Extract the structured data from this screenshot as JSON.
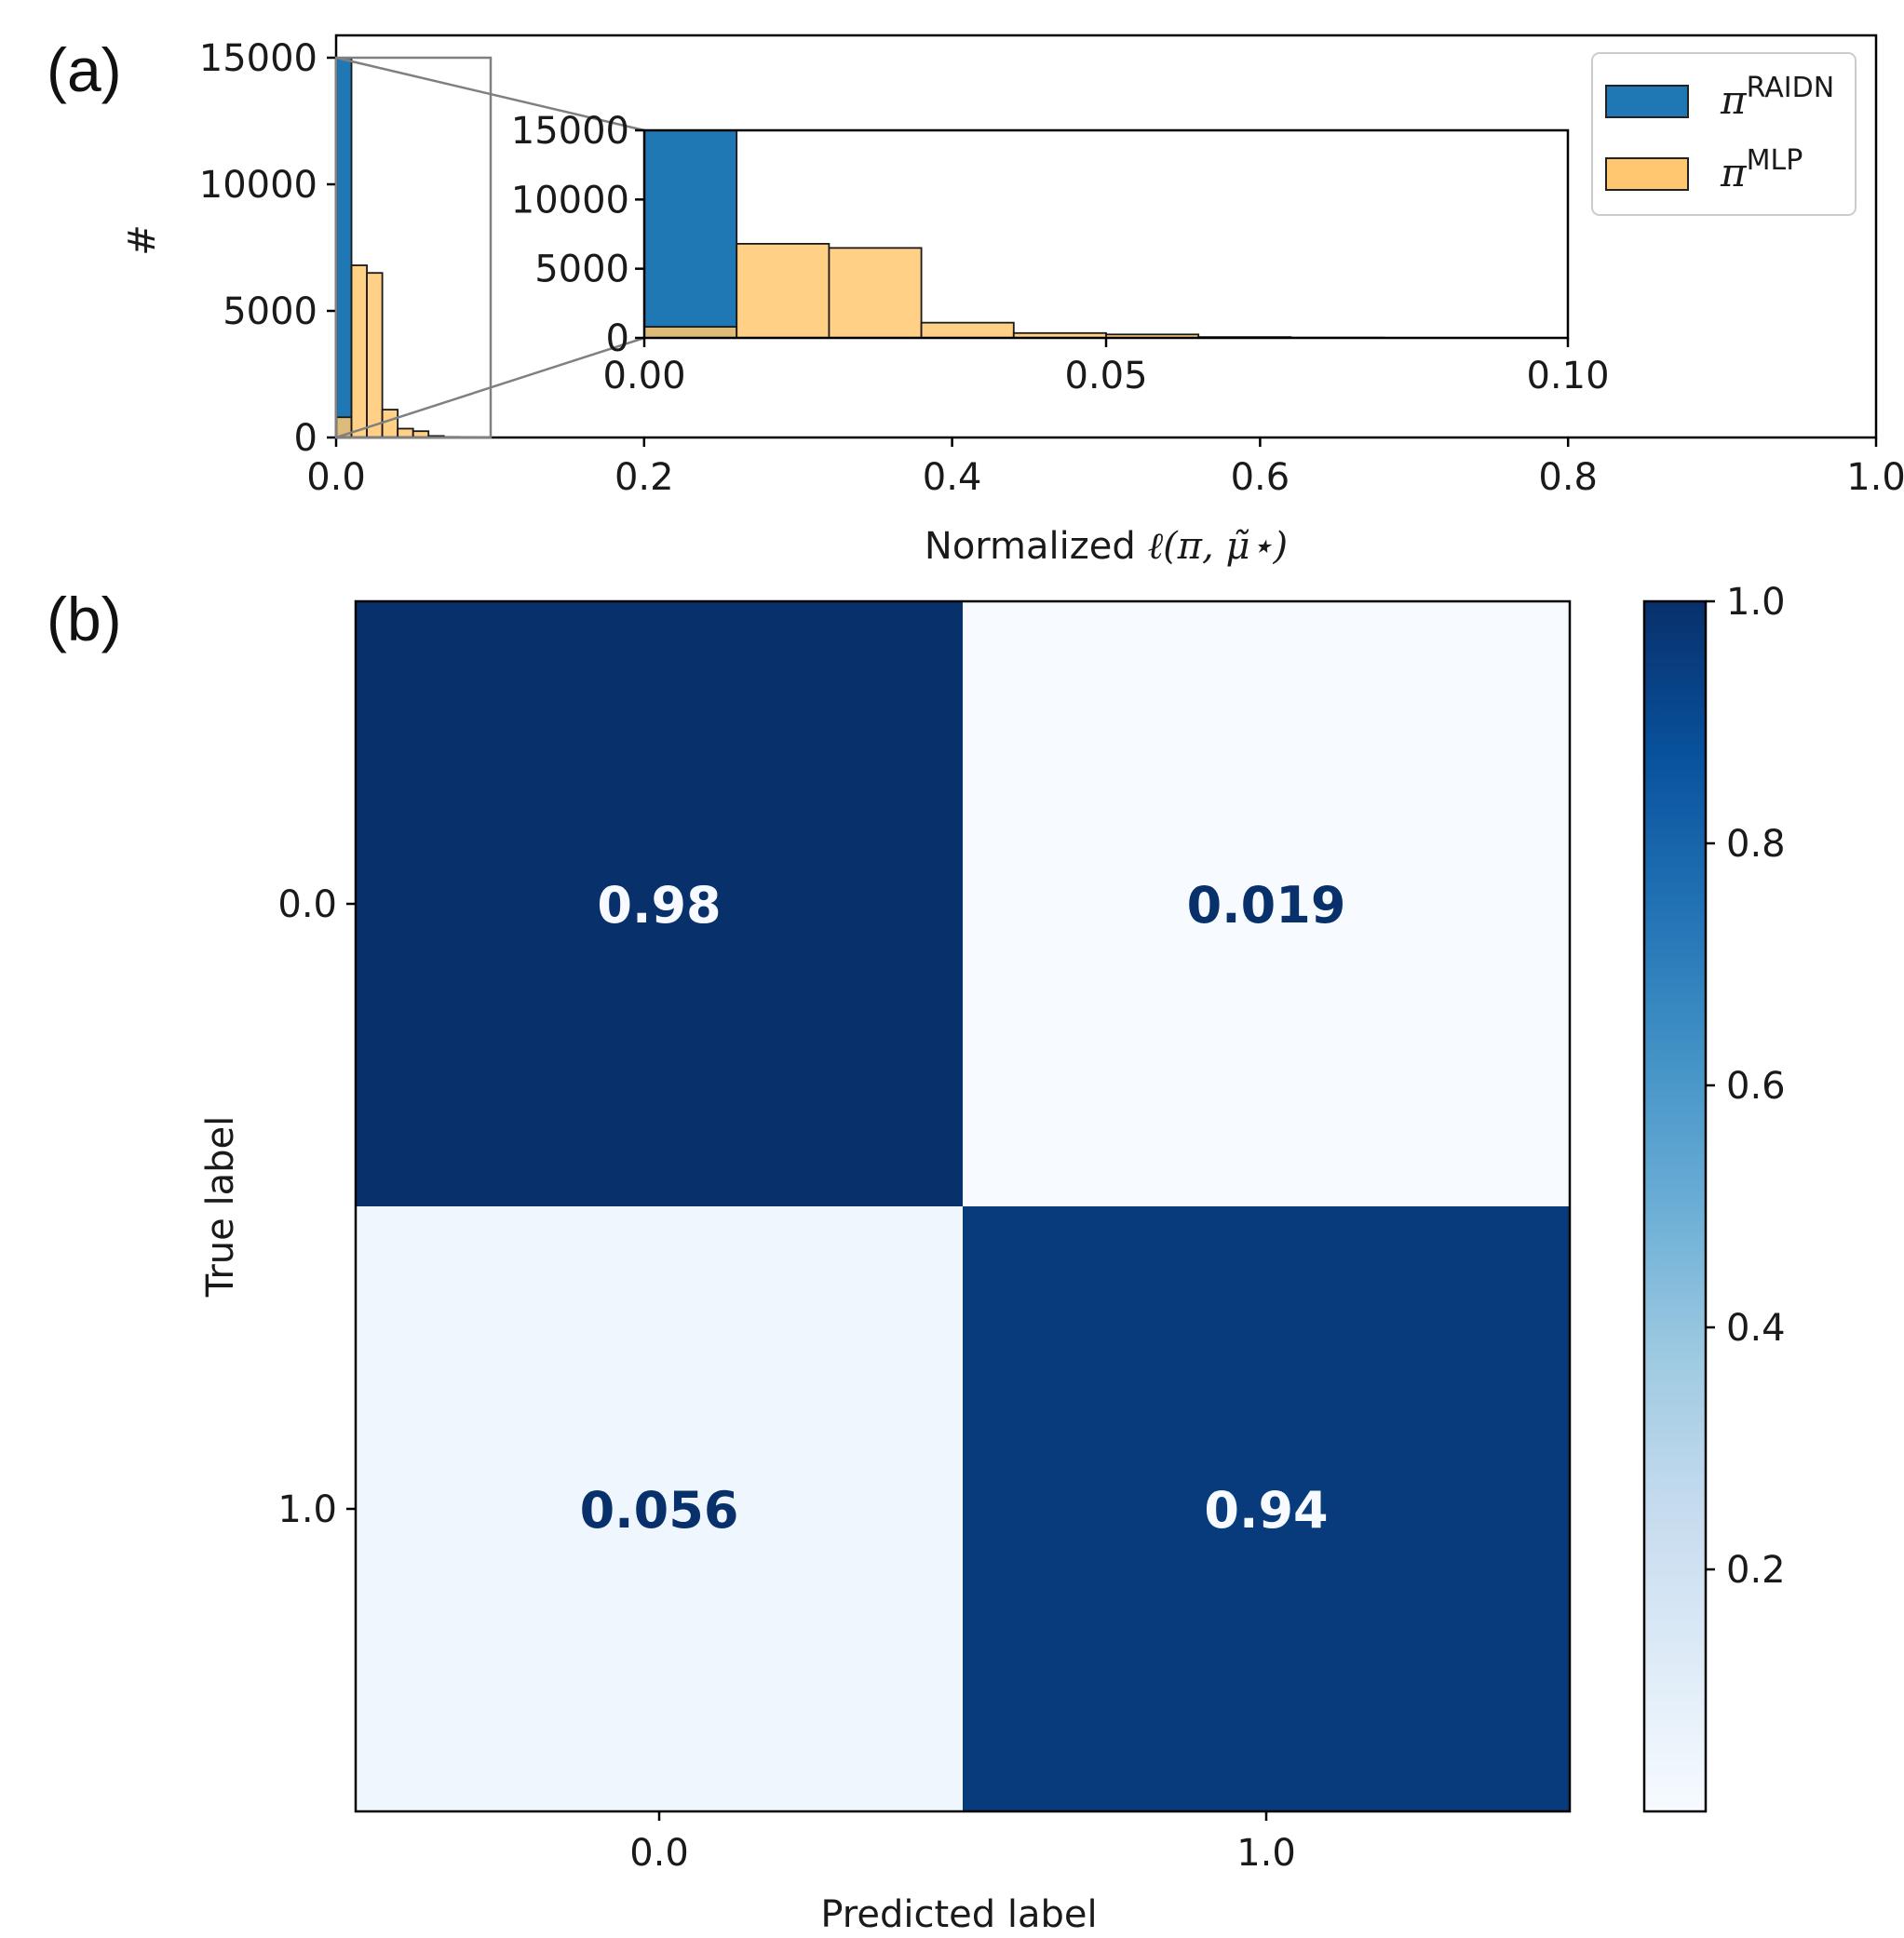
{
  "colors": {
    "raidn": "#1f77b4",
    "mlp": "#ffc870",
    "overlap": "#6b6a2e",
    "cm_dark": "#08306b",
    "cm_light": "#f7fbff",
    "zoom_box": "#808080"
  },
  "chart_data": [
    {
      "id": "a",
      "panel_label": "(a)",
      "type": "histogram",
      "xlabel_prefix": "Normalized ",
      "xlabel_math": "ℓ(π, μ̃⋆)",
      "ylabel": "#",
      "xlim": [
        0.0,
        1.0
      ],
      "ylim": [
        0,
        15000
      ],
      "xticks": [
        "0.0",
        "0.2",
        "0.4",
        "0.6",
        "0.8",
        "1.0"
      ],
      "yticks": [
        "0",
        "5000",
        "10000",
        "15000"
      ],
      "bin_width": 0.01,
      "series": [
        {
          "name": "RAIDN",
          "legend_symbol": "π",
          "legend_sup": "RAIDN",
          "bins": [
            {
              "start": 0.0,
              "value": 15000
            }
          ]
        },
        {
          "name": "MLP",
          "legend_symbol": "π",
          "legend_sup": "MLP",
          "bins": [
            {
              "start": 0.0,
              "value": 800
            },
            {
              "start": 0.01,
              "value": 6800
            },
            {
              "start": 0.02,
              "value": 6500
            },
            {
              "start": 0.03,
              "value": 1100
            },
            {
              "start": 0.04,
              "value": 350
            },
            {
              "start": 0.05,
              "value": 250
            },
            {
              "start": 0.06,
              "value": 60
            },
            {
              "start": 0.07,
              "value": 20
            },
            {
              "start": 0.08,
              "value": 8
            }
          ]
        }
      ],
      "inset": {
        "xlim": [
          0.0,
          0.1
        ],
        "ylim": [
          0,
          15000
        ],
        "xticks": [
          "0.00",
          "0.05",
          "0.10"
        ],
        "yticks": [
          "0",
          "5000",
          "10000",
          "15000"
        ]
      },
      "zoom_region": {
        "xlim": [
          0.0,
          0.1
        ],
        "ylim": [
          0,
          15000
        ]
      },
      "legend_loc": "upper right"
    },
    {
      "id": "b",
      "panel_label": "(b)",
      "type": "heatmap",
      "title": "",
      "xlabel": "Predicted label",
      "ylabel": "True label",
      "x_categories": [
        "0.0",
        "1.0"
      ],
      "y_categories": [
        "0.0",
        "1.0"
      ],
      "matrix": [
        [
          0.98,
          0.019
        ],
        [
          0.056,
          0.94
        ]
      ],
      "cell_labels": [
        [
          "0.98",
          "0.019"
        ],
        [
          "0.056",
          "0.94"
        ]
      ],
      "colormap": "Blues",
      "colorbar": {
        "range": [
          0.0,
          1.0
        ],
        "ticks": [
          "0.2",
          "0.4",
          "0.6",
          "0.8",
          "1.0"
        ]
      }
    }
  ]
}
